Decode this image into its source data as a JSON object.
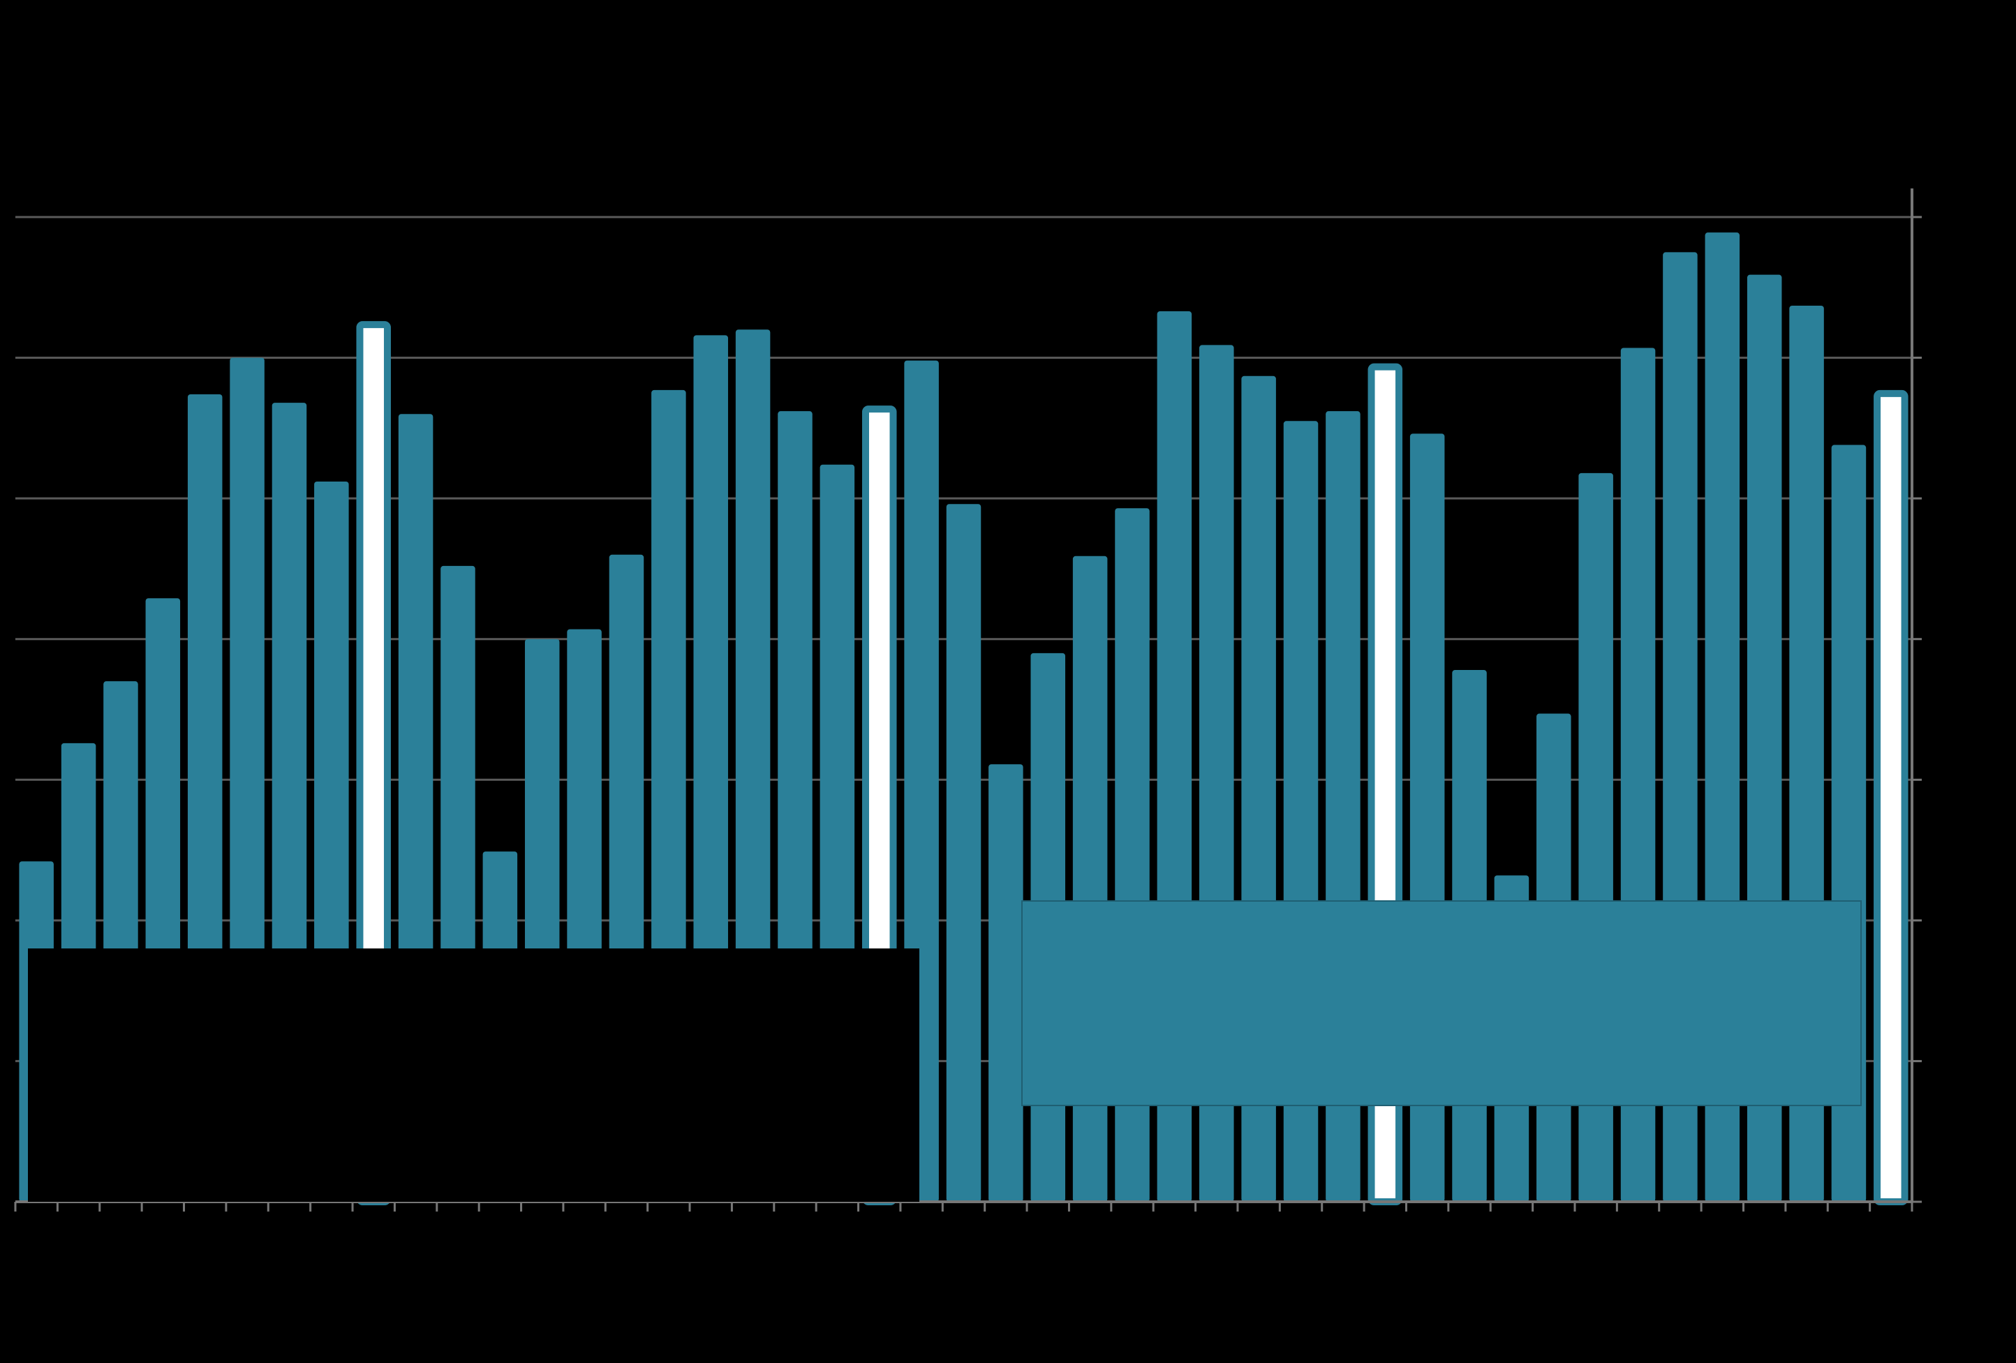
{
  "chart_data": {
    "type": "bar",
    "values": [
      2.42,
      3.26,
      3.7,
      4.29,
      5.74,
      6.0,
      5.68,
      5.12,
      6.26,
      5.6,
      4.52,
      2.49,
      4.0,
      4.07,
      4.6,
      5.77,
      6.16,
      6.2,
      5.62,
      5.24,
      5.66,
      5.98,
      4.96,
      3.11,
      3.9,
      4.59,
      4.93,
      6.33,
      6.09,
      5.87,
      5.55,
      5.62,
      5.96,
      5.46,
      3.78,
      2.32,
      3.47,
      5.18,
      6.07,
      6.75,
      6.89,
      6.59,
      6.37,
      5.38,
      5.77
    ],
    "color": "#2b8099",
    "highlight": [
      8,
      20,
      32,
      44
    ],
    "highlight_color": "#ffffff",
    "ylim": [
      0,
      7
    ],
    "yticks": [
      0,
      1,
      2,
      3,
      4,
      5,
      6,
      7
    ],
    "grid": true
  }
}
